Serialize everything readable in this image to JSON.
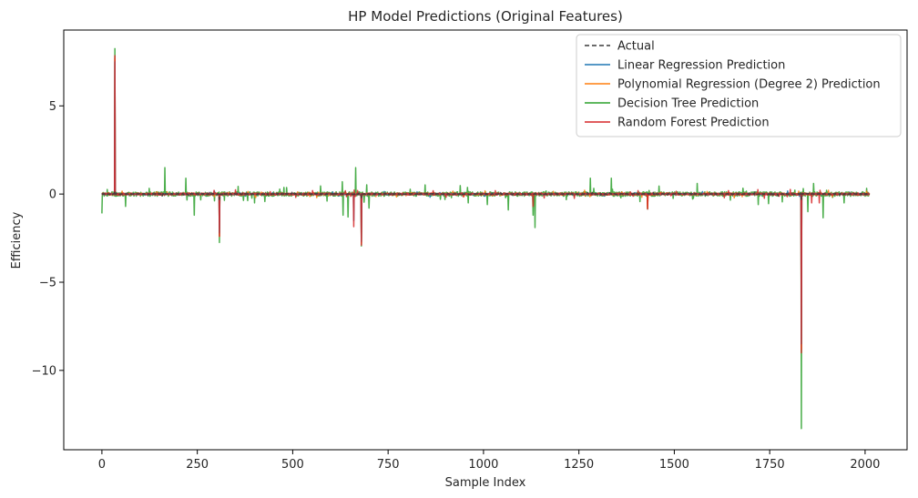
{
  "chart_data": {
    "type": "line",
    "title": "HP Model Predictions (Original Features)",
    "xlabel": "Sample Index",
    "ylabel": "Efficiency",
    "xlim": [
      -100,
      2110
    ],
    "ylim": [
      -14.5,
      9.3
    ],
    "xticks": [
      0,
      250,
      500,
      750,
      1000,
      1250,
      1500,
      1750,
      2000
    ],
    "xtick_labels": [
      "0",
      "250",
      "500",
      "750",
      "1000",
      "1250",
      "1500",
      "1750",
      "2000"
    ],
    "yticks": [
      5,
      0,
      -5,
      -10
    ],
    "ytick_labels": [
      "5",
      "0",
      "−5",
      "−10"
    ],
    "grid": false,
    "legend_position": "upper right",
    "n_samples": 2012,
    "series": [
      {
        "name": "Actual",
        "color": "#3a3a3a",
        "dash": true,
        "baseline": 0.0,
        "noise": 0.05,
        "spikes": [
          [
            34,
            0.2
          ],
          [
            308,
            -0.3
          ],
          [
            680,
            -0.2
          ],
          [
            1833,
            -0.3
          ]
        ]
      },
      {
        "name": "Linear Regression Prediction",
        "color": "#1f77b4",
        "dash": false,
        "baseline": 0.0,
        "noise": 0.08,
        "spikes": [
          [
            34,
            7.5
          ],
          [
            308,
            -2.2
          ],
          [
            660,
            -1.5
          ],
          [
            680,
            -2.7
          ],
          [
            1833,
            -8.5
          ]
        ]
      },
      {
        "name": "Polynomial Regression (Degree 2) Prediction",
        "color": "#ff7f0e",
        "dash": false,
        "baseline": 0.0,
        "noise": 0.1,
        "spikes": [
          [
            34,
            7.7
          ],
          [
            308,
            -2.4
          ],
          [
            680,
            -2.8
          ],
          [
            1833,
            -8.8
          ],
          [
            1430,
            -0.8
          ]
        ]
      },
      {
        "name": "Decision Tree Prediction",
        "color": "#2ca02c",
        "dash": false,
        "baseline": 0.0,
        "noise": 0.25,
        "spikes": [
          [
            0,
            -1.1
          ],
          [
            34,
            8.25
          ],
          [
            62,
            -0.7
          ],
          [
            165,
            1.5
          ],
          [
            220,
            0.9
          ],
          [
            242,
            -1.2
          ],
          [
            308,
            -2.75
          ],
          [
            400,
            -0.5
          ],
          [
            590,
            -0.4
          ],
          [
            630,
            0.7
          ],
          [
            632,
            -1.2
          ],
          [
            645,
            -1.3
          ],
          [
            665,
            1.5
          ],
          [
            680,
            -2.95
          ],
          [
            700,
            -0.8
          ],
          [
            960,
            -0.5
          ],
          [
            1010,
            -0.6
          ],
          [
            1065,
            -0.9
          ],
          [
            1130,
            -1.2
          ],
          [
            1135,
            -1.9
          ],
          [
            1280,
            0.9
          ],
          [
            1335,
            0.9
          ],
          [
            1430,
            -0.85
          ],
          [
            1560,
            0.6
          ],
          [
            1720,
            -0.6
          ],
          [
            1833,
            -13.3
          ],
          [
            1850,
            -1.0
          ],
          [
            1865,
            0.6
          ],
          [
            1890,
            -1.35
          ],
          [
            1945,
            -0.5
          ]
        ]
      },
      {
        "name": "Random Forest Prediction",
        "color": "#d62728",
        "dash": false,
        "baseline": 0.0,
        "noise": 0.12,
        "spikes": [
          [
            34,
            7.85
          ],
          [
            308,
            -2.4
          ],
          [
            660,
            -1.85
          ],
          [
            680,
            -2.9
          ],
          [
            1130,
            -0.7
          ],
          [
            1430,
            -0.85
          ],
          [
            1833,
            -9.0
          ],
          [
            1860,
            -0.5
          ],
          [
            1880,
            -0.5
          ]
        ]
      }
    ]
  }
}
